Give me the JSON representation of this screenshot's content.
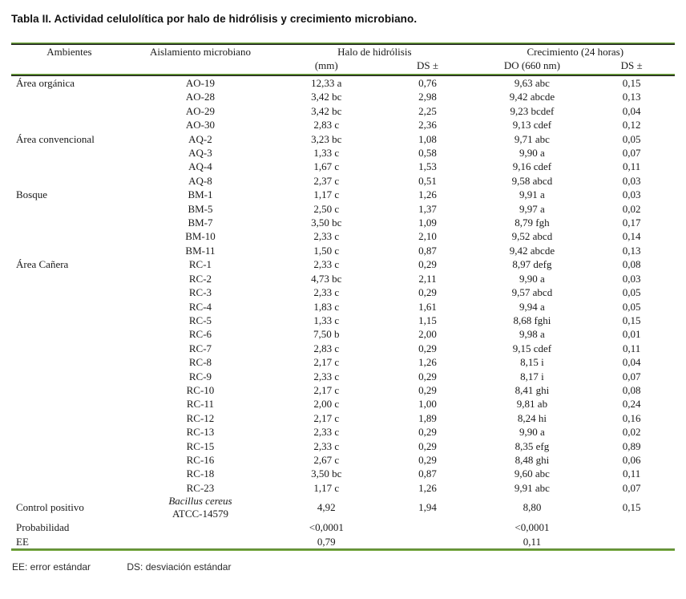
{
  "title": "Tabla II. Actividad celulolítica por halo de hidrólisis y crecimiento microbiano.",
  "table": {
    "col_headers": {
      "ambientes": "Ambientes",
      "aislamiento": "Aislamiento microbiano",
      "halo_group": "Halo de hidrólisis",
      "halo_mm": "(mm)",
      "halo_ds": "DS ±",
      "crec_group": "Crecimiento (24 horas)",
      "crec_do": "DO (660 nm)",
      "crec_ds": "DS ±"
    },
    "sections": [
      {
        "ambiente": "Área orgánica",
        "rows": [
          {
            "id": "AO-19",
            "halo": "12,33 a",
            "halo_ds": "0,76",
            "do": "9,63 abc",
            "do_ds": "0,15"
          },
          {
            "id": "AO-28",
            "halo": "3,42 bc",
            "halo_ds": "2,98",
            "do": "9,42 abcde",
            "do_ds": "0,13"
          },
          {
            "id": "AO-29",
            "halo": "3,42 bc",
            "halo_ds": "2,25",
            "do": "9,23 bcdef",
            "do_ds": "0,04"
          },
          {
            "id": "AO-30",
            "halo": "2,83 c",
            "halo_ds": "2,36",
            "do": "9,13 cdef",
            "do_ds": "0,12"
          }
        ]
      },
      {
        "ambiente": "Área convencional",
        "rows": [
          {
            "id": "AQ-2",
            "halo": "3,23 bc",
            "halo_ds": "1,08",
            "do": "9,71 abc",
            "do_ds": "0,05"
          },
          {
            "id": "AQ-3",
            "halo": "1,33 c",
            "halo_ds": "0,58",
            "do": "9,90 a",
            "do_ds": "0,07"
          },
          {
            "id": "AQ-4",
            "halo": "1,67 c",
            "halo_ds": "1,53",
            "do": "9,16 cdef",
            "do_ds": "0,11"
          },
          {
            "id": "AQ-8",
            "halo": "2,37 c",
            "halo_ds": "0,51",
            "do": "9,58 abcd",
            "do_ds": "0,03"
          }
        ]
      },
      {
        "ambiente": "Bosque",
        "rows": [
          {
            "id": "BM-1",
            "halo": "1,17 c",
            "halo_ds": "1,26",
            "do": "9,91 a",
            "do_ds": "0,03"
          },
          {
            "id": "BM-5",
            "halo": "2,50 c",
            "halo_ds": "1,37",
            "do": "9,97 a",
            "do_ds": "0,02"
          },
          {
            "id": "BM-7",
            "halo": "3,50 bc",
            "halo_ds": "1,09",
            "do": "8,79 fgh",
            "do_ds": "0,17"
          },
          {
            "id": "BM-10",
            "halo": "2,33 c",
            "halo_ds": "2,10",
            "do": "9,52 abcd",
            "do_ds": "0,14"
          },
          {
            "id": "BM-11",
            "halo": "1,50 c",
            "halo_ds": "0,87",
            "do": "9,42 abcde",
            "do_ds": "0,13"
          }
        ]
      },
      {
        "ambiente": "Área Cañera",
        "rows": [
          {
            "id": "RC-1",
            "halo": "2,33 c",
            "halo_ds": "0,29",
            "do": "8,97 defg",
            "do_ds": "0,08"
          },
          {
            "id": "RC-2",
            "halo": "4,73 bc",
            "halo_ds": "2,11",
            "do": "9,90 a",
            "do_ds": "0,03"
          },
          {
            "id": "RC-3",
            "halo": "2,33 c",
            "halo_ds": "0,29",
            "do": "9,57 abcd",
            "do_ds": "0,05"
          },
          {
            "id": "RC-4",
            "halo": "1,83 c",
            "halo_ds": "1,61",
            "do": "9,94 a",
            "do_ds": "0,05"
          },
          {
            "id": "RC-5",
            "halo": "1,33 c",
            "halo_ds": "1,15",
            "do": "8,68 fghi",
            "do_ds": "0,15"
          },
          {
            "id": "RC-6",
            "halo": "7,50 b",
            "halo_ds": "2,00",
            "do": "9,98 a",
            "do_ds": "0,01"
          },
          {
            "id": "RC-7",
            "halo": "2,83 c",
            "halo_ds": "0,29",
            "do": "9,15 cdef",
            "do_ds": "0,11"
          },
          {
            "id": "RC-8",
            "halo": "2,17 c",
            "halo_ds": "1,26",
            "do": "8,15 i",
            "do_ds": "0,04"
          },
          {
            "id": "RC-9",
            "halo": "2,33 c",
            "halo_ds": "0,29",
            "do": "8,17 i",
            "do_ds": "0,07"
          },
          {
            "id": "RC-10",
            "halo": "2,17 c",
            "halo_ds": "0,29",
            "do": "8,41 ghi",
            "do_ds": "0,08"
          },
          {
            "id": "RC-11",
            "halo": "2,00 c",
            "halo_ds": "1,00",
            "do": "9,81 ab",
            "do_ds": "0,24"
          },
          {
            "id": "RC-12",
            "halo": "2,17 c",
            "halo_ds": "1,89",
            "do": "8,24 hi",
            "do_ds": "0,16"
          },
          {
            "id": "RC-13",
            "halo": "2,33 c",
            "halo_ds": "0,29",
            "do": "9,90 a",
            "do_ds": "0,02"
          },
          {
            "id": "RC-15",
            "halo": "2,33 c",
            "halo_ds": "0,29",
            "do": "8,35 efg",
            "do_ds": "0,89"
          },
          {
            "id": "RC-16",
            "halo": "2,67 c",
            "halo_ds": "0,29",
            "do": "8,48 ghi",
            "do_ds": "0,06"
          },
          {
            "id": "RC-18",
            "halo": "3,50 bc",
            "halo_ds": "0,87",
            "do": "9,60 abc",
            "do_ds": "0,11"
          },
          {
            "id": "RC-23",
            "halo": "1,17 c",
            "halo_ds": "1,26",
            "do": "9,91 abc",
            "do_ds": "0,07"
          }
        ]
      }
    ],
    "control": {
      "ambiente": "Control positivo",
      "species": "Bacillus cereus",
      "strain": "ATCC-14579",
      "halo": "4,92",
      "halo_ds": "1,94",
      "do": "8,80",
      "do_ds": "0,15"
    },
    "stats": [
      {
        "label": "Probabilidad",
        "halo": "<0,0001",
        "do": "<0,0001"
      },
      {
        "label": "EE",
        "halo": "0,79",
        "do": "0,11"
      }
    ]
  },
  "footnote": {
    "ee": "EE: error estándar",
    "ds": "DS: desviación estándar"
  },
  "colors": {
    "rule_green": "#6fa83c",
    "rule_dark": "#1d1d1d",
    "text": "#1a1a1a"
  }
}
